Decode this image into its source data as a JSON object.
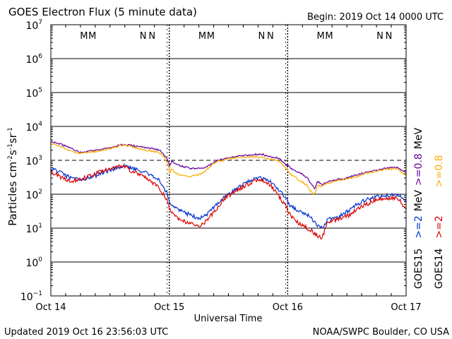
{
  "chart_data": {
    "type": "line",
    "title": "GOES Electron Flux (5 minute data)",
    "begin_label": "Begin: 2019 Oct 14 0000 UTC",
    "xlabel": "Universal Time",
    "ylabel_main": "Particles cm",
    "ylabel_exp1": "-2",
    "ylabel_mid1": "s",
    "ylabel_exp2": "-1",
    "ylabel_mid2": "sr",
    "ylabel_exp3": "-1",
    "footer_left": "Updated 2019 Oct 16 23:56:03 UTC",
    "footer_right": "NOAA/SWPC Boulder, CO USA",
    "y_scale": "log",
    "ylim": [
      0.1,
      10000000
    ],
    "xlim_hours": [
      0,
      72
    ],
    "y_ticks": [
      {
        "base": "10",
        "exp": "7",
        "value": 10000000
      },
      {
        "base": "10",
        "exp": "6",
        "value": 1000000
      },
      {
        "base": "10",
        "exp": "5",
        "value": 100000
      },
      {
        "base": "10",
        "exp": "4",
        "value": 10000
      },
      {
        "base": "10",
        "exp": "3",
        "value": 1000
      },
      {
        "base": "10",
        "exp": "2",
        "value": 100
      },
      {
        "base": "10",
        "exp": "1",
        "value": 10
      },
      {
        "base": "10",
        "exp": "0",
        "value": 1
      },
      {
        "base": "10",
        "exp": "−1",
        "value": 0.1
      }
    ],
    "x_ticks": [
      {
        "label": "Oct 14",
        "hour": 0
      },
      {
        "label": "Oct 15",
        "hour": 24
      },
      {
        "label": "Oct 16",
        "hour": 48
      },
      {
        "label": "Oct 17",
        "hour": 72
      }
    ],
    "dashed_threshold": 1000,
    "markers": [
      {
        "text": "M",
        "hour": 6.7,
        "color": "#dd0000"
      },
      {
        "text": "M",
        "hour": 8.4,
        "color": "#0000cc"
      },
      {
        "text": "N",
        "hour": 18.7,
        "color": "#dd0000"
      },
      {
        "text": "N",
        "hour": 20.5,
        "color": "#0000cc"
      },
      {
        "text": "M",
        "hour": 30.7,
        "color": "#dd0000"
      },
      {
        "text": "M",
        "hour": 32.4,
        "color": "#0000cc"
      },
      {
        "text": "N",
        "hour": 42.7,
        "color": "#dd0000"
      },
      {
        "text": "N",
        "hour": 44.5,
        "color": "#0000cc"
      },
      {
        "text": "M",
        "hour": 54.7,
        "color": "#dd0000"
      },
      {
        "text": "M",
        "hour": 56.4,
        "color": "#0000cc"
      },
      {
        "text": "N",
        "hour": 66.7,
        "color": "#dd0000"
      },
      {
        "text": "N",
        "hour": 68.5,
        "color": "#0000cc"
      }
    ],
    "legend": {
      "goes15": "GOES15",
      "goes14": "GOES14",
      "g15_08": ">=0.8",
      "g14_08": ">=0.8",
      "mev_08": "MeV",
      "g15_2": ">=2",
      "g14_2": ">=2",
      "mev_2": "MeV"
    },
    "series": [
      {
        "name": ">=0.8 MeV GOES15",
        "color": "#660099",
        "x": [
          0,
          1,
          2,
          3,
          4,
          6,
          8,
          10,
          12,
          14,
          15,
          16,
          18,
          20,
          22,
          23,
          23.9,
          24,
          24.5,
          25,
          26,
          27,
          28,
          29,
          30,
          31,
          32,
          33,
          34,
          35,
          36,
          38,
          40,
          42,
          43,
          44,
          45,
          46,
          47,
          47.9,
          48,
          48.5,
          49,
          50,
          51,
          52,
          52.5,
          53,
          53.5,
          54,
          55,
          56,
          58,
          60,
          62,
          64,
          66,
          68,
          70,
          71,
          72
        ],
        "y": [
          3500,
          3300,
          3000,
          2600,
          2300,
          1700,
          1900,
          2000,
          2400,
          2800,
          2900,
          2800,
          2500,
          2300,
          2000,
          1400,
          900,
          700,
          900,
          850,
          700,
          650,
          600,
          560,
          580,
          620,
          700,
          850,
          1000,
          1100,
          1200,
          1350,
          1400,
          1500,
          1500,
          1300,
          1250,
          1200,
          900,
          700,
          750,
          600,
          520,
          450,
          380,
          300,
          220,
          180,
          150,
          240,
          190,
          230,
          270,
          300,
          380,
          450,
          500,
          600,
          620,
          520,
          450
        ]
      },
      {
        "name": ">=0.8 MeV GOES14",
        "color": "#ffaa00",
        "x": [
          0,
          1,
          2,
          3,
          4,
          6,
          8,
          10,
          12,
          14,
          15,
          16,
          18,
          20,
          22,
          23,
          23.9,
          24,
          24.5,
          25,
          26,
          27,
          28,
          29,
          30,
          31,
          32,
          33,
          34,
          35,
          36,
          38,
          40,
          42,
          43,
          44,
          45,
          46,
          47,
          47.9,
          48,
          48.5,
          49,
          50,
          51,
          52,
          52.5,
          53,
          53.5,
          54,
          55,
          56,
          58,
          60,
          62,
          64,
          66,
          68,
          70,
          71,
          72
        ],
        "y": [
          3200,
          2900,
          2500,
          2200,
          1900,
          1600,
          1750,
          1900,
          2200,
          2700,
          2800,
          2600,
          2200,
          1900,
          1700,
          1200,
          700,
          400,
          550,
          450,
          380,
          340,
          330,
          350,
          380,
          450,
          600,
          800,
          950,
          1000,
          1100,
          1200,
          1250,
          1250,
          1200,
          1100,
          1050,
          1000,
          750,
          550,
          500,
          400,
          350,
          280,
          230,
          180,
          130,
          110,
          100,
          180,
          170,
          210,
          250,
          280,
          330,
          420,
          480,
          550,
          560,
          450,
          350
        ]
      },
      {
        "name": ">=2 MeV GOES15",
        "color": "#0033cc",
        "x": [
          0,
          1,
          2,
          3,
          4,
          6,
          8,
          10,
          12,
          14,
          15,
          16,
          18,
          20,
          22,
          23,
          23.9,
          24,
          24.5,
          25,
          26,
          27,
          28,
          29,
          30,
          31,
          32,
          33,
          34,
          35,
          36,
          38,
          40,
          42,
          43,
          44,
          45,
          46,
          47,
          47.9,
          48,
          48.5,
          49,
          50,
          51,
          52,
          53,
          54,
          55,
          56,
          58,
          60,
          62,
          64,
          66,
          68,
          70,
          71,
          72
        ],
        "y": [
          550,
          500,
          430,
          350,
          300,
          260,
          300,
          400,
          520,
          650,
          680,
          600,
          500,
          380,
          250,
          150,
          80,
          60,
          50,
          45,
          35,
          30,
          25,
          22,
          20,
          22,
          28,
          40,
          60,
          80,
          100,
          160,
          240,
          300,
          300,
          260,
          200,
          150,
          100,
          70,
          55,
          45,
          40,
          35,
          30,
          25,
          18,
          12,
          10,
          18,
          20,
          30,
          50,
          70,
          85,
          90,
          100,
          90,
          60
        ]
      },
      {
        "name": ">=2 MeV GOES14",
        "color": "#dd0000",
        "x": [
          0,
          1,
          2,
          3,
          4,
          6,
          8,
          10,
          12,
          14,
          15,
          16,
          18,
          20,
          22,
          23,
          23.9,
          24,
          24.5,
          25,
          26,
          27,
          28,
          29,
          30,
          31,
          32,
          33,
          34,
          35,
          36,
          38,
          40,
          42,
          43,
          44,
          45,
          46,
          47,
          47.9,
          48,
          48.5,
          49,
          50,
          51,
          52,
          53,
          54,
          55,
          56,
          58,
          60,
          62,
          64,
          66,
          68,
          70,
          71,
          72
        ],
        "y": [
          450,
          400,
          320,
          280,
          250,
          270,
          350,
          450,
          560,
          650,
          680,
          500,
          400,
          250,
          150,
          90,
          55,
          35,
          30,
          25,
          18,
          16,
          14,
          13,
          12,
          14,
          20,
          28,
          45,
          70,
          90,
          140,
          200,
          260,
          250,
          220,
          150,
          100,
          60,
          40,
          30,
          25,
          20,
          15,
          12,
          10,
          8,
          6,
          5,
          15,
          17,
          22,
          35,
          50,
          70,
          75,
          80,
          60,
          35
        ]
      }
    ]
  }
}
